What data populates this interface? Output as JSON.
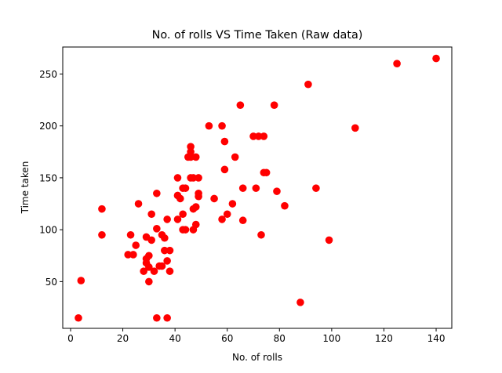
{
  "chart_data": {
    "type": "scatter",
    "title": "No. of rolls VS Time Taken (Raw data)",
    "xlabel": "No. of rolls",
    "ylabel": "Time taken",
    "xlim": [
      -3,
      146
    ],
    "ylim": [
      5,
      276
    ],
    "xticks": [
      0,
      20,
      40,
      60,
      80,
      100,
      120,
      140
    ],
    "yticks": [
      50,
      100,
      150,
      200,
      250
    ],
    "grid": false,
    "marker_color": "#ff0000",
    "series": [
      {
        "points": [
          [
            3,
            15
          ],
          [
            4,
            51
          ],
          [
            12,
            120
          ],
          [
            12,
            95
          ],
          [
            22,
            76
          ],
          [
            23,
            95
          ],
          [
            24,
            76
          ],
          [
            25,
            85
          ],
          [
            26,
            125
          ],
          [
            28,
            60
          ],
          [
            29,
            93
          ],
          [
            29,
            72
          ],
          [
            29,
            68
          ],
          [
            30,
            75
          ],
          [
            30,
            64
          ],
          [
            30,
            50
          ],
          [
            31,
            115
          ],
          [
            31,
            90
          ],
          [
            32,
            60
          ],
          [
            33,
            135
          ],
          [
            33,
            101
          ],
          [
            33,
            15
          ],
          [
            34,
            65
          ],
          [
            35,
            95
          ],
          [
            35,
            65
          ],
          [
            36,
            92
          ],
          [
            36,
            80
          ],
          [
            37,
            110
          ],
          [
            37,
            70
          ],
          [
            37,
            15
          ],
          [
            38,
            80
          ],
          [
            38,
            60
          ],
          [
            41,
            150
          ],
          [
            41,
            133
          ],
          [
            41,
            110
          ],
          [
            42,
            130
          ],
          [
            43,
            140
          ],
          [
            43,
            115
          ],
          [
            43,
            100
          ],
          [
            44,
            140
          ],
          [
            44,
            100
          ],
          [
            45,
            170
          ],
          [
            46,
            180
          ],
          [
            46,
            175
          ],
          [
            46,
            170
          ],
          [
            46,
            150
          ],
          [
            47,
            150
          ],
          [
            47,
            120
          ],
          [
            47,
            100
          ],
          [
            48,
            170
          ],
          [
            48,
            105
          ],
          [
            48,
            122
          ],
          [
            49,
            150
          ],
          [
            49,
            135
          ],
          [
            49,
            132
          ],
          [
            53,
            200
          ],
          [
            55,
            130
          ],
          [
            58,
            200
          ],
          [
            58,
            110
          ],
          [
            59,
            185
          ],
          [
            59,
            158
          ],
          [
            60,
            115
          ],
          [
            62,
            125
          ],
          [
            63,
            170
          ],
          [
            65,
            220
          ],
          [
            66,
            140
          ],
          [
            66,
            109
          ],
          [
            70,
            190
          ],
          [
            71,
            140
          ],
          [
            72,
            190
          ],
          [
            73,
            95
          ],
          [
            74,
            190
          ],
          [
            74,
            155
          ],
          [
            75,
            155
          ],
          [
            78,
            220
          ],
          [
            79,
            137
          ],
          [
            82,
            123
          ],
          [
            88,
            30
          ],
          [
            91,
            240
          ],
          [
            94,
            140
          ],
          [
            99,
            90
          ],
          [
            109,
            198
          ],
          [
            125,
            260
          ],
          [
            140,
            265
          ]
        ]
      }
    ]
  }
}
